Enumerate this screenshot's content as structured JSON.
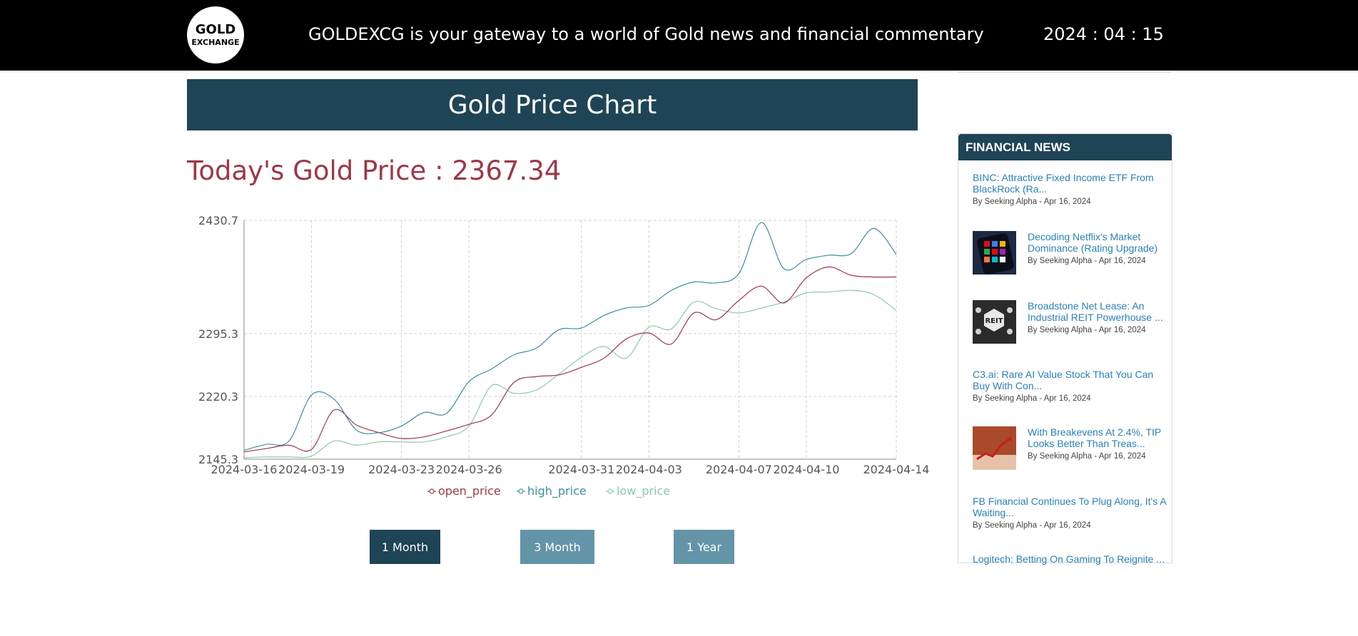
{
  "header": {
    "logo_line1": "GOLD",
    "logo_line2": "EXCHANGE",
    "tagline": "GOLDEXCG is your gateway to a world of Gold news and financial commentary",
    "date": "2024 : 04 : 15"
  },
  "main": {
    "chart_title": "Gold Price Chart",
    "today_label": "Today's Gold Price : ",
    "today_value": "2367.34"
  },
  "buttons": {
    "one_month": "1 Month",
    "three_month": "3 Month",
    "one_year": "1 Year"
  },
  "news": {
    "header": "FINANCIAL NEWS",
    "items": [
      {
        "title": "BINC: Attractive Fixed Income ETF From BlackRock (Ra...",
        "meta": "By Seeking Alpha - Apr 16, 2024"
      },
      {
        "title": "Decoding Netflix's Market Dominance (Rating Upgrade)",
        "meta": "By Seeking Alpha - Apr 16, 2024"
      },
      {
        "title": "Broadstone Net Lease: An Industrial REIT Powerhouse ...",
        "meta": "By Seeking Alpha - Apr 16, 2024"
      },
      {
        "title": "C3.ai: Rare AI Value Stock That You Can Buy With Con...",
        "meta": "By Seeking Alpha - Apr 16, 2024"
      },
      {
        "title": "With Breakevens At 2.4%, TIP Looks Better Than Treas...",
        "meta": "By Seeking Alpha - Apr 16, 2024"
      },
      {
        "title": "FB Financial Continues To Plug Along, It's A Waiting...",
        "meta": "By Seeking Alpha - Apr 16, 2024"
      },
      {
        "title": "Logitech: Betting On Gaming To Reignite ..."
      }
    ]
  },
  "colors": {
    "open_price": "#9c3848",
    "high_price": "#3a8fa0",
    "low_price": "#8cc9a8",
    "header_bg": "#1f4456"
  },
  "chart_data": {
    "type": "line",
    "x": [
      "2024-03-16",
      "2024-03-17",
      "2024-03-18",
      "2024-03-19",
      "2024-03-20",
      "2024-03-21",
      "2024-03-22",
      "2024-03-23",
      "2024-03-24",
      "2024-03-25",
      "2024-03-26",
      "2024-03-27",
      "2024-03-28",
      "2024-03-29",
      "2024-03-30",
      "2024-03-31",
      "2024-04-01",
      "2024-04-02",
      "2024-04-03",
      "2024-04-04",
      "2024-04-05",
      "2024-04-06",
      "2024-04-07",
      "2024-04-08",
      "2024-04-09",
      "2024-04-10",
      "2024-04-11",
      "2024-04-12",
      "2024-04-13",
      "2024-04-14"
    ],
    "x_ticks": [
      "2024-03-16",
      "2024-03-19",
      "2024-03-23",
      "2024-03-26",
      "2024-03-31",
      "2024-04-03",
      "2024-04-07",
      "2024-04-10",
      "2024-04-14"
    ],
    "y_ticks": [
      "2145.3",
      "2220.3",
      "2295.3",
      "2430.7"
    ],
    "ylim": [
      2145.3,
      2430.7
    ],
    "grid": true,
    "legend": "bottom",
    "series": [
      {
        "name": "open_price",
        "values": [
          2154,
          2158,
          2162,
          2157,
          2204,
          2186,
          2177,
          2170,
          2172,
          2179,
          2187,
          2198,
          2237,
          2244,
          2246,
          2255,
          2266,
          2289,
          2296,
          2283,
          2320,
          2312,
          2335,
          2352,
          2332,
          2362,
          2375,
          2365,
          2363,
          2363
        ]
      },
      {
        "name": "high_price",
        "values": [
          2156,
          2163,
          2167,
          2222,
          2217,
          2180,
          2177,
          2185,
          2201,
          2200,
          2238,
          2253,
          2270,
          2278,
          2300,
          2302,
          2317,
          2326,
          2329,
          2347,
          2357,
          2356,
          2367,
          2428,
          2373,
          2384,
          2389,
          2391,
          2421,
          2390
        ]
      },
      {
        "name": "low_price",
        "values": [
          2147,
          2148,
          2148,
          2149,
          2167,
          2162,
          2166,
          2166,
          2166,
          2172,
          2185,
          2233,
          2224,
          2228,
          2247,
          2267,
          2280,
          2266,
          2303,
          2301,
          2333,
          2325,
          2320,
          2326,
          2333,
          2344,
          2345,
          2347,
          2342,
          2323
        ]
      }
    ]
  }
}
